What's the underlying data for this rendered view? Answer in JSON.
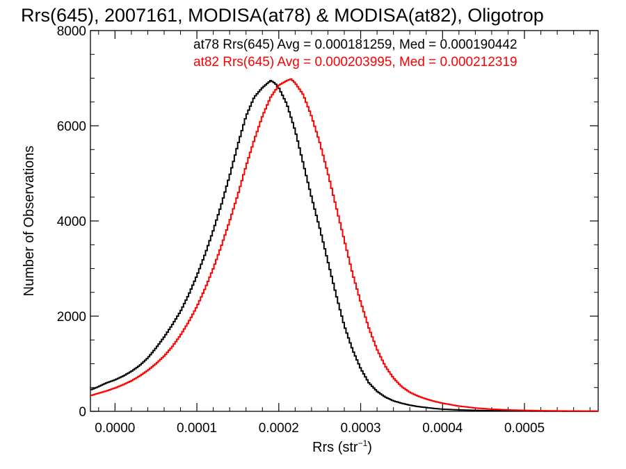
{
  "chart_data": {
    "type": "line",
    "title": "Rrs(645), 2007161, MODISA(at78) & MODISA(at82), Oligotrop",
    "xlabel": "Rrs (str",
    "xlabel_sup": "−1",
    "xlabel_close": ")",
    "ylabel": "Number of Observations",
    "xlim": [
      -3e-05,
      0.00059
    ],
    "ylim": [
      0,
      8000
    ],
    "x_ticks": [
      0.0,
      0.0001,
      0.0002,
      0.0003,
      0.0004,
      0.0005
    ],
    "x_tick_labels": [
      "0.0000",
      "0.0001",
      "0.0002",
      "0.0003",
      "0.0004",
      "0.0005"
    ],
    "y_ticks": [
      0,
      2000,
      4000,
      6000,
      8000
    ],
    "y_tick_labels": [
      "0",
      "2000",
      "4000",
      "6000",
      "8000"
    ],
    "annotations": [
      "at78 Rrs(645) Avg = 0.000181259, Med = 0.000190442",
      "at82 Rrs(645) Avg = 0.000203995, Med = 0.000212319"
    ],
    "series": [
      {
        "color": "#000000",
        "x": [
          -3e-05,
          -2e-05,
          -1e-05,
          0.0,
          1e-05,
          2e-05,
          3e-05,
          4e-05,
          5e-05,
          6e-05,
          7e-05,
          8e-05,
          9e-05,
          0.0001,
          0.00011,
          0.00012,
          0.00013,
          0.00014,
          0.00015,
          0.00016,
          0.00017,
          0.00018,
          0.00019,
          0.000195,
          0.0002,
          0.00021,
          0.00022,
          0.00023,
          0.00024,
          0.00025,
          0.00026,
          0.00027,
          0.00028,
          0.00029,
          0.0003,
          0.00031,
          0.00032,
          0.00033,
          0.00034,
          0.00035,
          0.00036,
          0.00037,
          0.00038,
          0.00039,
          0.0004,
          0.00042,
          0.00044,
          0.00046,
          0.00048,
          0.0005,
          0.00052,
          0.00054,
          0.00056,
          0.00059
        ],
        "y": [
          450,
          520,
          600,
          660,
          740,
          840,
          960,
          1120,
          1330,
          1560,
          1820,
          2100,
          2450,
          2850,
          3300,
          3800,
          4350,
          4950,
          5600,
          6200,
          6600,
          6800,
          6950,
          6900,
          6800,
          6450,
          5900,
          5200,
          4500,
          3850,
          3150,
          2450,
          1800,
          1300,
          900,
          600,
          420,
          300,
          220,
          170,
          130,
          100,
          80,
          60,
          45,
          30,
          20,
          14,
          10,
          7,
          5,
          3,
          2,
          1
        ]
      },
      {
        "color": "#ff0000",
        "x": [
          -3e-05,
          -2e-05,
          -1e-05,
          0.0,
          1e-05,
          2e-05,
          3e-05,
          4e-05,
          5e-05,
          6e-05,
          7e-05,
          8e-05,
          9e-05,
          0.0001,
          0.00011,
          0.00012,
          0.00013,
          0.00014,
          0.00015,
          0.00016,
          0.00017,
          0.00018,
          0.00019,
          0.0002,
          0.00021,
          0.000215,
          0.00022,
          0.00023,
          0.00024,
          0.00025,
          0.00026,
          0.00027,
          0.00028,
          0.00029,
          0.0003,
          0.00031,
          0.00032,
          0.00033,
          0.00034,
          0.00035,
          0.00036,
          0.00037,
          0.00038,
          0.00039,
          0.0004,
          0.00042,
          0.00044,
          0.00046,
          0.00048,
          0.0005,
          0.00052,
          0.00054,
          0.00056,
          0.00059
        ],
        "y": [
          330,
          380,
          430,
          490,
          560,
          640,
          740,
          860,
          1000,
          1160,
          1360,
          1600,
          1880,
          2200,
          2580,
          3000,
          3480,
          4000,
          4550,
          5150,
          5700,
          6200,
          6600,
          6850,
          6950,
          6980,
          6900,
          6650,
          6200,
          5650,
          5000,
          4300,
          3600,
          2900,
          2300,
          1750,
          1300,
          950,
          700,
          520,
          400,
          320,
          260,
          210,
          170,
          110,
          70,
          45,
          30,
          20,
          14,
          10,
          7,
          5
        ]
      }
    ]
  }
}
